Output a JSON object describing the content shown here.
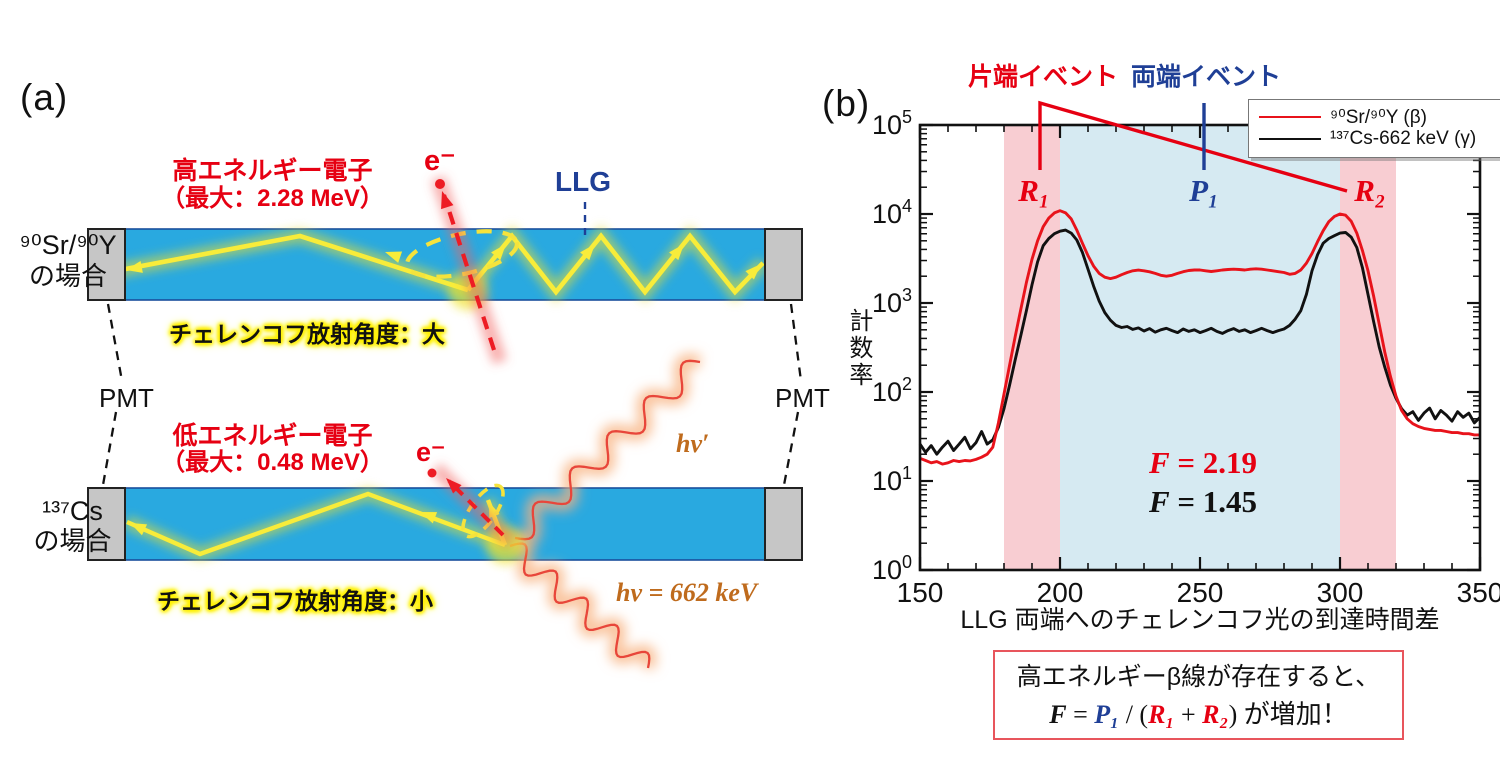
{
  "panel_a": {
    "label": "(a)",
    "pmt_left": "PMT",
    "pmt_right": "PMT",
    "top": {
      "case_line1": "⁹⁰Sr/⁹⁰Y",
      "case_line2": "の場合",
      "electron_line1": "高エネルギー電子",
      "electron_line2": "（最大：2.28 MeV）",
      "electron_symbol": "e⁻",
      "llg_label": "LLG",
      "angle_label": "チェレンコフ放射角度：大"
    },
    "bottom": {
      "case_line1": "¹³⁷Cs",
      "case_line2": "の場合",
      "electron_line1": "低エネルギー電子",
      "electron_line2": "（最大：0.48 MeV）",
      "electron_symbol": "e⁻",
      "angle_label": "チェレンコフ放射角度：小",
      "photon_in": "hν = 662 keV",
      "photon_out": "hν′"
    },
    "colors": {
      "bar_blue": "#29a9e0",
      "bar_edge": "#1a4f9c",
      "pmt_gray": "#c6c6c6",
      "cherenkov_yellow": "#f8ec3a",
      "electron_red": "#ed1c24",
      "photon_orange": "#f8b27e"
    }
  },
  "panel_b": {
    "label": "(b)",
    "annotations": {
      "one_end_label": "片端イベント",
      "both_end_label": "両端イベント",
      "r1": "R₁",
      "p1": "P₁",
      "r2": "R₂",
      "f_red": {
        "sym": "F",
        "val": " = 2.19"
      },
      "f_black": {
        "sym": "F",
        "val": " = 1.45"
      }
    },
    "legend": [
      {
        "label": "⁹⁰Sr/⁹⁰Y (β)",
        "color": "#e8131b"
      },
      {
        "label": "¹³⁷Cs-662 keV (γ)",
        "color": "#111111"
      }
    ],
    "box": {
      "line1": "高エネルギーβ線が存在すると、",
      "f": "F",
      "eq": " = ",
      "p1": "P₁",
      "slash": " / (",
      "r1": "R₁",
      "plus": " + ",
      "r2": "R₂",
      "tail": ") が増加！"
    }
  },
  "chart_data": {
    "type": "line",
    "title": "",
    "xlabel": "LLG 両端へのチェレンコフ光の到達時間差",
    "ylabel": "計数率",
    "xlim": [
      150,
      350
    ],
    "ylog": true,
    "ylim": [
      1,
      100000
    ],
    "x_ticks": [
      150,
      200,
      250,
      300,
      350
    ],
    "x_minor_step": 10,
    "y_tick_labels": [
      "10⁰",
      "10¹",
      "10²",
      "10³",
      "10⁴",
      "10⁵"
    ],
    "grid": false,
    "legend_position": "top-right",
    "bands": [
      {
        "name": "R1",
        "range": [
          180,
          200
        ],
        "color": "#f8cdd2"
      },
      {
        "name": "P1",
        "range": [
          200,
          300
        ],
        "color": "#d6eaf2"
      },
      {
        "name": "R2",
        "range": [
          300,
          320
        ],
        "color": "#f8cdd2"
      }
    ],
    "f_ratios": [
      {
        "series": "⁹⁰Sr/⁹⁰Y (β)",
        "F": 2.19
      },
      {
        "series": "¹³⁷Cs-662 keV (γ)",
        "F": 1.45
      }
    ],
    "x_start": 150,
    "x_step": 2,
    "series": [
      {
        "name": "¹³⁷Cs-662 keV (γ)",
        "color": "#111111",
        "y": [
          26,
          21,
          25,
          20,
          24,
          28,
          22,
          26,
          31,
          23,
          27,
          36,
          26,
          29,
          40,
          65,
          120,
          230,
          430,
          820,
          1600,
          2900,
          4400,
          5300,
          6000,
          6400,
          6600,
          6100,
          5100,
          3700,
          2400,
          1550,
          1050,
          780,
          640,
          560,
          530,
          545,
          505,
          525,
          485,
          515,
          470,
          500,
          520,
          490,
          465,
          510,
          480,
          500,
          465,
          490,
          520,
          480,
          455,
          490,
          515,
          480,
          500,
          465,
          490,
          520,
          490,
          465,
          490,
          510,
          560,
          660,
          820,
          1250,
          2300,
          3500,
          4700,
          5300,
          5700,
          6100,
          6200,
          5500,
          4200,
          2500,
          1250,
          620,
          320,
          190,
          120,
          85,
          65,
          55,
          60,
          48,
          58,
          66,
          50,
          62,
          55,
          47,
          60,
          52,
          58,
          45,
          52
        ]
      },
      {
        "name": "⁹⁰Sr/⁹⁰Y (β)",
        "color": "#e8131b",
        "y": [
          18,
          17,
          16,
          16.5,
          15.5,
          16,
          17,
          16.5,
          17,
          16.8,
          17.5,
          18.5,
          20,
          24,
          45,
          95,
          200,
          420,
          850,
          1700,
          3100,
          5000,
          7200,
          9000,
          10300,
          10900,
          10300,
          8800,
          6600,
          4700,
          3400,
          2600,
          2150,
          1950,
          1880,
          1950,
          2080,
          2200,
          2300,
          2340,
          2300,
          2240,
          2150,
          2050,
          2000,
          2050,
          2150,
          2250,
          2320,
          2350,
          2350,
          2300,
          2260,
          2300,
          2350,
          2380,
          2400,
          2380,
          2350,
          2400,
          2420,
          2400,
          2350,
          2300,
          2250,
          2200,
          2100,
          2150,
          2350,
          2800,
          3600,
          4900,
          6500,
          8200,
          9400,
          10000,
          9700,
          8300,
          6100,
          3900,
          2300,
          1200,
          580,
          280,
          150,
          90,
          62,
          50,
          44,
          41,
          39,
          38,
          37,
          37,
          36,
          35,
          35,
          34,
          34,
          33,
          33
        ]
      }
    ]
  }
}
